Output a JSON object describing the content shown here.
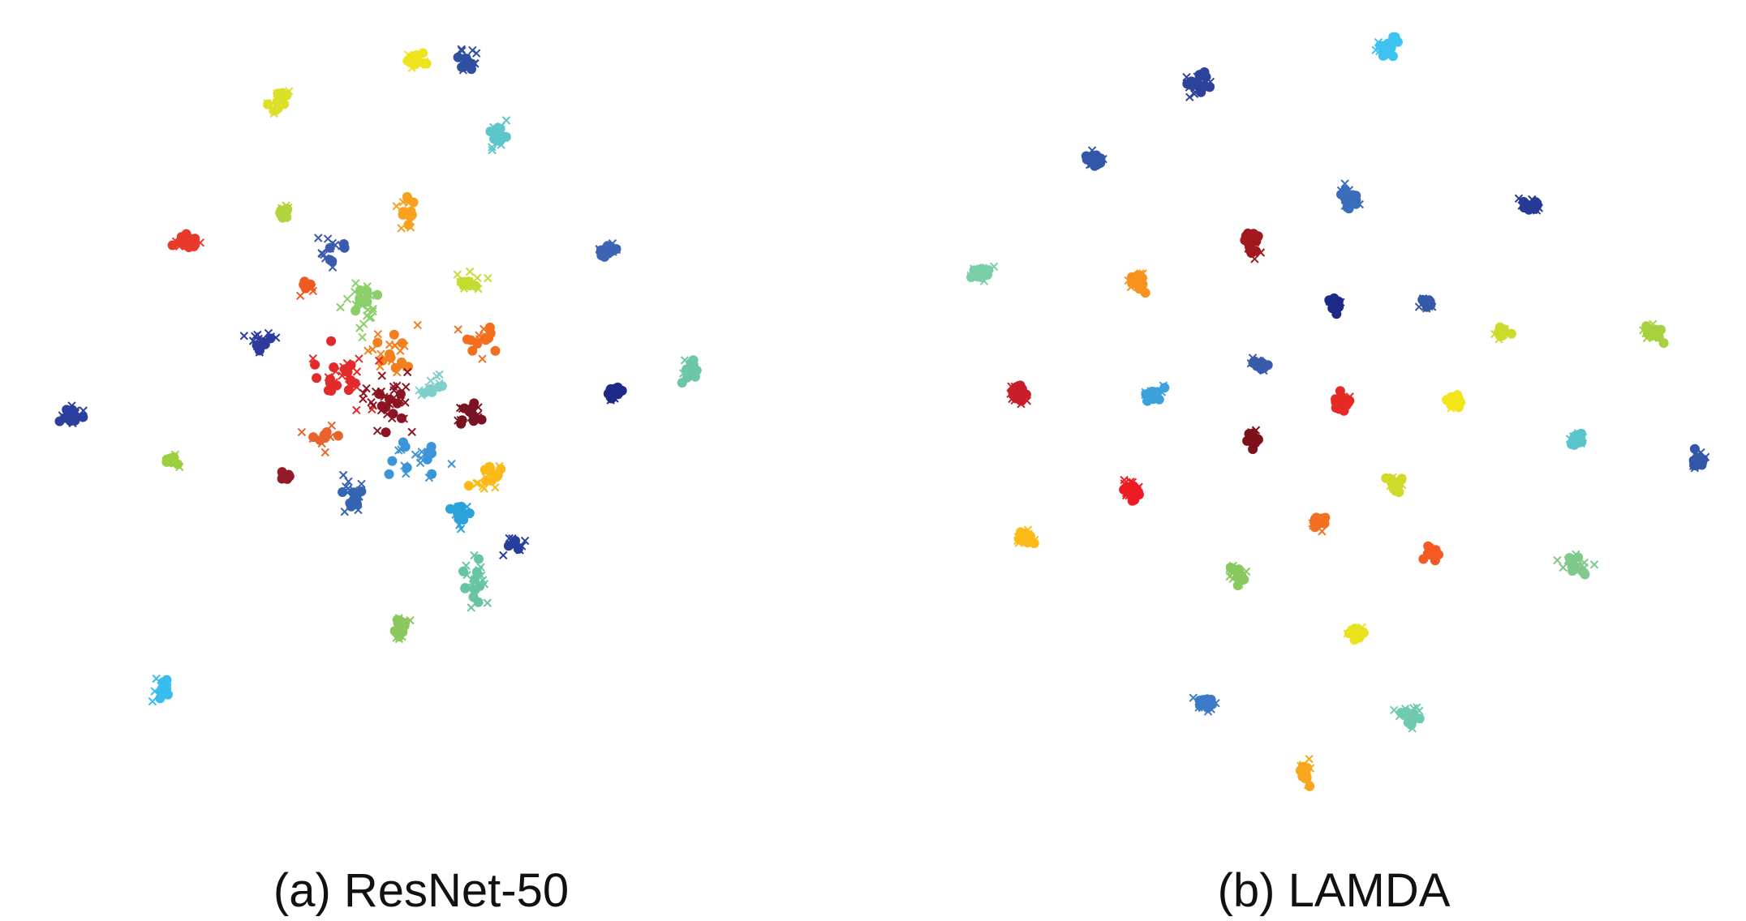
{
  "chart_data": [
    {
      "type": "scatter",
      "title": "(a) ResNet-50",
      "xlabel": "",
      "ylabel": "",
      "xlim": [
        0,
        100
      ],
      "ylim": [
        0,
        100
      ],
      "grid": false,
      "legend": "none",
      "marker_encoding": {
        "circle": "source",
        "x": "target"
      },
      "clusters": [
        {
          "color": "#EDE41C",
          "center": [
            48,
            95
          ],
          "spread": [
            1.2,
            1.0
          ],
          "circle": 14,
          "cross": 10
        },
        {
          "color": "#2F4FA0",
          "center": [
            55,
            95
          ],
          "spread": [
            1.0,
            1.4
          ],
          "circle": 12,
          "cross": 10
        },
        {
          "color": "#DDE028",
          "center": [
            30,
            90
          ],
          "spread": [
            1.0,
            1.4
          ],
          "circle": 12,
          "cross": 8
        },
        {
          "color": "#5CC6CB",
          "center": [
            59,
            85
          ],
          "spread": [
            1.0,
            1.4
          ],
          "circle": 12,
          "cross": 8
        },
        {
          "color": "#F7A11E",
          "center": [
            47,
            75
          ],
          "spread": [
            0.9,
            1.8
          ],
          "circle": 12,
          "cross": 8
        },
        {
          "color": "#B2D43C",
          "center": [
            31,
            75
          ],
          "spread": [
            0.8,
            0.8
          ],
          "circle": 8,
          "cross": 6
        },
        {
          "color": "#E83A2C",
          "center": [
            18,
            71
          ],
          "spread": [
            1.4,
            1.0
          ],
          "circle": 16,
          "cross": 10
        },
        {
          "color": "#3B5BB0",
          "center": [
            37,
            70
          ],
          "spread": [
            1.2,
            2.0
          ],
          "circle": 5,
          "cross": 12
        },
        {
          "color": "#3C64B4",
          "center": [
            73,
            70
          ],
          "spread": [
            1.2,
            0.8
          ],
          "circle": 10,
          "cross": 8
        },
        {
          "color": "#F05A22",
          "center": [
            34,
            65
          ],
          "spread": [
            0.9,
            0.8
          ],
          "circle": 8,
          "cross": 4
        },
        {
          "color": "#8ACF6A",
          "center": [
            41,
            63
          ],
          "spread": [
            1.6,
            3.0
          ],
          "circle": 10,
          "cross": 18
        },
        {
          "color": "#C3DC2E",
          "center": [
            55,
            66
          ],
          "spread": [
            1.5,
            1.5
          ],
          "circle": 6,
          "cross": 10
        },
        {
          "color": "#F2801E",
          "center": [
            45,
            56
          ],
          "spread": [
            3.0,
            3.5
          ],
          "circle": 10,
          "cross": 16
        },
        {
          "color": "#F36F1E",
          "center": [
            57,
            58
          ],
          "spread": [
            1.6,
            1.6
          ],
          "circle": 10,
          "cross": 6
        },
        {
          "color": "#2D3A9E",
          "center": [
            28,
            58
          ],
          "spread": [
            1.5,
            1.5
          ],
          "circle": 6,
          "cross": 12
        },
        {
          "color": "#E32A2A",
          "center": [
            38,
            53
          ],
          "spread": [
            3.5,
            4.0
          ],
          "circle": 16,
          "cross": 16
        },
        {
          "color": "#8C1423",
          "center": [
            44,
            50
          ],
          "spread": [
            3.0,
            3.0
          ],
          "circle": 10,
          "cross": 24
        },
        {
          "color": "#7FCFCB",
          "center": [
            50,
            52
          ],
          "spread": [
            1.5,
            1.5
          ],
          "circle": 6,
          "cross": 8
        },
        {
          "color": "#7A1321",
          "center": [
            55,
            48
          ],
          "spread": [
            1.2,
            1.2
          ],
          "circle": 10,
          "cross": 10
        },
        {
          "color": "#1F2A87",
          "center": [
            74,
            51
          ],
          "spread": [
            0.8,
            1.0
          ],
          "circle": 14,
          "cross": 6
        },
        {
          "color": "#6CC7A8",
          "center": [
            84,
            54
          ],
          "spread": [
            1.0,
            1.2
          ],
          "circle": 14,
          "cross": 8
        },
        {
          "color": "#2C3E9E",
          "center": [
            3,
            48
          ],
          "spread": [
            1.0,
            1.0
          ],
          "circle": 14,
          "cross": 10
        },
        {
          "color": "#E9642A",
          "center": [
            36,
            45
          ],
          "spread": [
            1.5,
            1.5
          ],
          "circle": 6,
          "cross": 6
        },
        {
          "color": "#3B95D8",
          "center": [
            48,
            42
          ],
          "spread": [
            3.0,
            2.0
          ],
          "circle": 10,
          "cross": 10
        },
        {
          "color": "#FDBA17",
          "center": [
            58,
            40
          ],
          "spread": [
            1.8,
            1.5
          ],
          "circle": 10,
          "cross": 10
        },
        {
          "color": "#9CCF3E",
          "center": [
            16,
            42
          ],
          "spread": [
            0.8,
            0.8
          ],
          "circle": 8,
          "cross": 6
        },
        {
          "color": "#931B26",
          "center": [
            31,
            40
          ],
          "spread": [
            0.6,
            0.6
          ],
          "circle": 8,
          "cross": 0
        },
        {
          "color": "#3464B2",
          "center": [
            40,
            37
          ],
          "spread": [
            1.2,
            2.5
          ],
          "circle": 10,
          "cross": 14
        },
        {
          "color": "#2AA3DA",
          "center": [
            54,
            35
          ],
          "spread": [
            1.2,
            1.5
          ],
          "circle": 10,
          "cross": 8
        },
        {
          "color": "#263E9E",
          "center": [
            61,
            31
          ],
          "spread": [
            1.0,
            0.8
          ],
          "circle": 4,
          "cross": 10
        },
        {
          "color": "#67C5A1",
          "center": [
            56,
            26
          ],
          "spread": [
            1.2,
            2.5
          ],
          "circle": 10,
          "cross": 14
        },
        {
          "color": "#8BC95C",
          "center": [
            46,
            20
          ],
          "spread": [
            0.8,
            1.5
          ],
          "circle": 10,
          "cross": 8
        },
        {
          "color": "#38BDEE",
          "center": [
            15,
            12
          ],
          "spread": [
            1.0,
            1.2
          ],
          "circle": 12,
          "cross": 8
        }
      ]
    },
    {
      "type": "scatter",
      "title": "(b) LAMDA",
      "xlabel": "",
      "ylabel": "",
      "xlim": [
        0,
        100
      ],
      "ylim": [
        0,
        100
      ],
      "grid": false,
      "legend": "none",
      "marker_encoding": {
        "circle": "source",
        "x": "target"
      },
      "clusters": [
        {
          "color": "#2D429C",
          "center": [
            32,
            92
          ],
          "spread": [
            1.1,
            1.3
          ],
          "circle": 18,
          "cross": 12
        },
        {
          "color": "#3EC3F0",
          "center": [
            57,
            97
          ],
          "spread": [
            1.1,
            1.2
          ],
          "circle": 18,
          "cross": 10
        },
        {
          "color": "#3157A8",
          "center": [
            18,
            82
          ],
          "spread": [
            1.0,
            1.0
          ],
          "circle": 14,
          "cross": 10
        },
        {
          "color": "#3A6DBA",
          "center": [
            52,
            77
          ],
          "spread": [
            1.1,
            1.3
          ],
          "circle": 16,
          "cross": 10
        },
        {
          "color": "#263A96",
          "center": [
            76,
            76
          ],
          "spread": [
            1.3,
            0.8
          ],
          "circle": 10,
          "cross": 12
        },
        {
          "color": "#A1191F",
          "center": [
            39,
            71
          ],
          "spread": [
            1.0,
            1.2
          ],
          "circle": 18,
          "cross": 8
        },
        {
          "color": "#7ACFA8",
          "center": [
            3,
            67
          ],
          "spread": [
            1.2,
            0.8
          ],
          "circle": 16,
          "cross": 8
        },
        {
          "color": "#F7931E",
          "center": [
            24,
            66
          ],
          "spread": [
            1.1,
            1.2
          ],
          "circle": 14,
          "cross": 10
        },
        {
          "color": "#1E2A87",
          "center": [
            50,
            63
          ],
          "spread": [
            0.8,
            0.8
          ],
          "circle": 14,
          "cross": 8
        },
        {
          "color": "#3658A8",
          "center": [
            62,
            63
          ],
          "spread": [
            0.8,
            0.8
          ],
          "circle": 8,
          "cross": 8
        },
        {
          "color": "#CCDB2C",
          "center": [
            72,
            59
          ],
          "spread": [
            0.8,
            0.8
          ],
          "circle": 14,
          "cross": 6
        },
        {
          "color": "#A7D13E",
          "center": [
            92,
            59
          ],
          "spread": [
            1.0,
            1.0
          ],
          "circle": 14,
          "cross": 8
        },
        {
          "color": "#3A5AAA",
          "center": [
            40,
            55
          ],
          "spread": [
            0.8,
            0.8
          ],
          "circle": 12,
          "cross": 8
        },
        {
          "color": "#C81E2A",
          "center": [
            8,
            51
          ],
          "spread": [
            1.3,
            1.0
          ],
          "circle": 18,
          "cross": 10
        },
        {
          "color": "#3CA2DC",
          "center": [
            26,
            51
          ],
          "spread": [
            1.1,
            1.0
          ],
          "circle": 16,
          "cross": 10
        },
        {
          "color": "#E52A25",
          "center": [
            51,
            50
          ],
          "spread": [
            1.1,
            1.0
          ],
          "circle": 18,
          "cross": 12
        },
        {
          "color": "#F3E51B",
          "center": [
            66,
            50
          ],
          "spread": [
            1.0,
            0.8
          ],
          "circle": 14,
          "cross": 8
        },
        {
          "color": "#7D1019",
          "center": [
            39,
            45
          ],
          "spread": [
            0.8,
            0.9
          ],
          "circle": 14,
          "cross": 6
        },
        {
          "color": "#59C4CC",
          "center": [
            82,
            45
          ],
          "spread": [
            1.0,
            1.0
          ],
          "circle": 14,
          "cross": 10
        },
        {
          "color": "#3357A8",
          "center": [
            98,
            42
          ],
          "spread": [
            0.8,
            1.0
          ],
          "circle": 12,
          "cross": 8
        },
        {
          "color": "#ED1C24",
          "center": [
            23,
            38
          ],
          "spread": [
            1.2,
            1.2
          ],
          "circle": 18,
          "cross": 14
        },
        {
          "color": "#CFDB2A",
          "center": [
            58,
            39
          ],
          "spread": [
            0.9,
            0.8
          ],
          "circle": 12,
          "cross": 6
        },
        {
          "color": "#F37021",
          "center": [
            48,
            34
          ],
          "spread": [
            0.8,
            0.8
          ],
          "circle": 12,
          "cross": 6
        },
        {
          "color": "#FDBB1A",
          "center": [
            9,
            32
          ],
          "spread": [
            1.0,
            0.8
          ],
          "circle": 14,
          "cross": 10
        },
        {
          "color": "#F45A23",
          "center": [
            63,
            30
          ],
          "spread": [
            0.7,
            0.7
          ],
          "circle": 12,
          "cross": 4
        },
        {
          "color": "#89C95E",
          "center": [
            37,
            27
          ],
          "spread": [
            1.0,
            1.3
          ],
          "circle": 12,
          "cross": 10
        },
        {
          "color": "#7FC98A",
          "center": [
            82,
            28
          ],
          "spread": [
            1.8,
            1.2
          ],
          "circle": 10,
          "cross": 14
        },
        {
          "color": "#E9E21E",
          "center": [
            53,
            19
          ],
          "spread": [
            1.0,
            0.8
          ],
          "circle": 16,
          "cross": 6
        },
        {
          "color": "#3C7BC6",
          "center": [
            33,
            10
          ],
          "spread": [
            1.1,
            0.8
          ],
          "circle": 14,
          "cross": 10
        },
        {
          "color": "#6FCBB0",
          "center": [
            60,
            8
          ],
          "spread": [
            1.2,
            1.2
          ],
          "circle": 16,
          "cross": 12
        },
        {
          "color": "#F8A61B",
          "center": [
            46,
            1
          ],
          "spread": [
            0.8,
            1.6
          ],
          "circle": 10,
          "cross": 10
        }
      ]
    }
  ]
}
